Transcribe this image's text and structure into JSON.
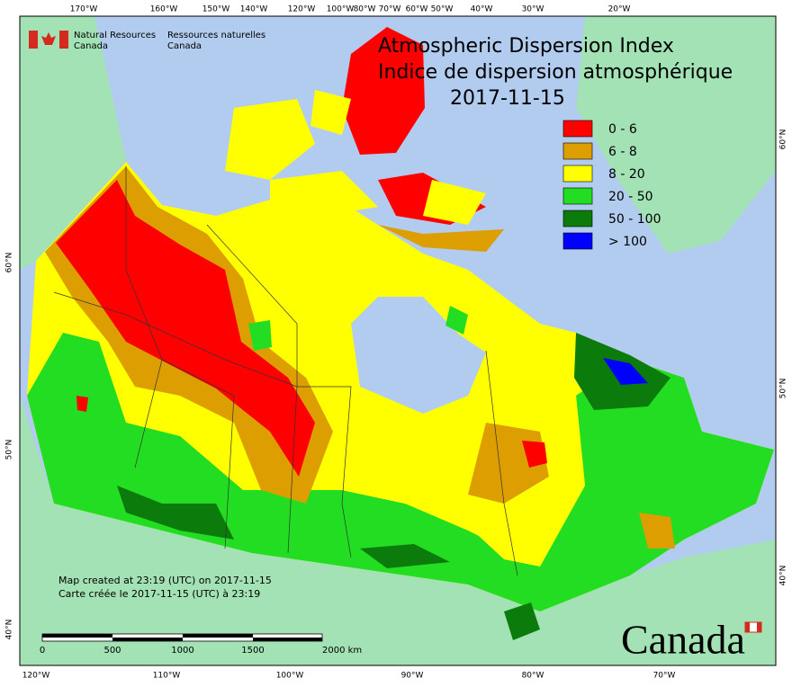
{
  "header": {
    "agency_en": [
      "Natural Resources",
      "Canada"
    ],
    "agency_fr": [
      "Ressources naturelles",
      "Canada"
    ]
  },
  "title": {
    "en": "Atmospheric Dispersion Index",
    "fr": "Indice de dispersion atmosphérique",
    "date": "2017-11-15"
  },
  "legend": [
    {
      "label": "0 - 6",
      "color": "#ff0000"
    },
    {
      "label": "6 - 8",
      "color": "#dc9e00"
    },
    {
      "label": "8 - 20",
      "color": "#ffff00"
    },
    {
      "label": "20 - 50",
      "color": "#22dd22"
    },
    {
      "label": "50 - 100",
      "color": "#0b7b0b"
    },
    {
      "label": "> 100",
      "color": "#0000ff"
    }
  ],
  "graticule": {
    "top": [
      "170°W",
      "160°W",
      "150°W",
      "140°W",
      "120°W",
      "100°W",
      "80°W",
      "70°W",
      "60°W",
      "50°W",
      "40°W",
      "30°W",
      "20°W"
    ],
    "bottom": [
      "120°W",
      "110°W",
      "100°W",
      "90°W",
      "80°W",
      "70°W"
    ],
    "left": [
      "60°N",
      "50°N",
      "40°N"
    ],
    "right": [
      "60°N",
      "50°N",
      "40°N"
    ]
  },
  "notes": [
    "Map created at 23:19 (UTC) on 2017-11-15",
    "Carte créée le 2017-11-15 (UTC) à 23:19"
  ],
  "scale_bar": [
    "0",
    "500",
    "1000",
    "1500",
    "2000 km"
  ],
  "wordmark": "Canada"
}
